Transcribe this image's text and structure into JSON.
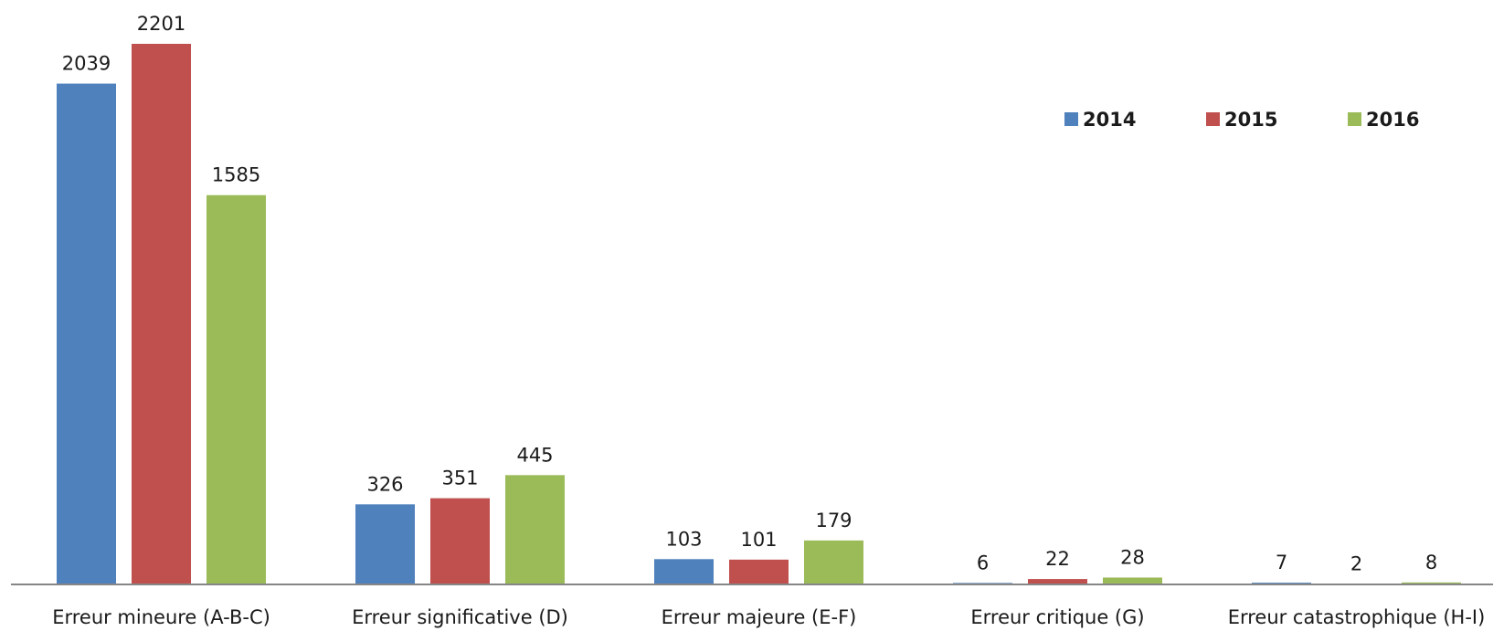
{
  "chart_data": {
    "type": "bar",
    "title": "",
    "xlabel": "",
    "ylabel": "",
    "categories": [
      "Erreur mineure (A-B-C)",
      "Erreur significative (D)",
      "Erreur majeure (E-F)",
      "Erreur critique (G)",
      "Erreur catastrophique (H-I)"
    ],
    "series": [
      {
        "name": "2014",
        "color": "#4f81bd",
        "values": [
          2039,
          326,
          103,
          6,
          7
        ]
      },
      {
        "name": "2015",
        "color": "#c0504d",
        "values": [
          2201,
          351,
          101,
          22,
          2
        ]
      },
      {
        "name": "2016",
        "color": "#9bbb59",
        "values": [
          1585,
          445,
          179,
          28,
          8
        ]
      }
    ],
    "ylim": [
      0,
      2201
    ],
    "grid": false,
    "y_axis_visible": false,
    "legend_position": "top-right",
    "axis_color": "#868686"
  }
}
